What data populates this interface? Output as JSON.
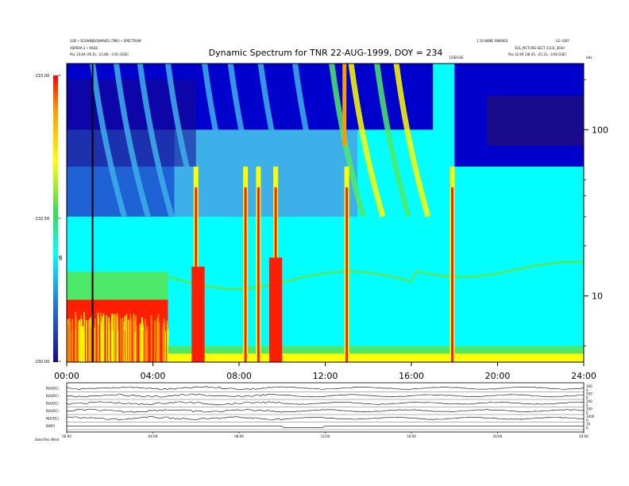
{
  "header": {
    "top_left_1": "GSE  •  SCI/WIND/SWAVES (TNR)  •  SPECTRUM",
    "top_left_2": "ASPERA-3  •  RAD2",
    "top_left_3": "Pos   33.84 (45.0), -23.86, -3.91 (GSE)",
    "top_right_1": "1.10  WIND  SWAVES",
    "top_right_2": "LS: IGRF",
    "top_right_3": "SOL_PICTURE  SECT 2(13)_3030",
    "top_right_4": "Pos   32.94 (38.45, -25.31, -3.60 GSE)",
    "marker_label": "GSE/GSE",
    "corner_label": "kHz"
  },
  "colorbar": {
    "ticks": [
      "-115.00",
      "-132.50",
      "-150.00"
    ],
    "unit_label": "dB"
  },
  "footer": {
    "label": "Solar/Sec Wind"
  },
  "colors": {
    "colormap": [
      "#1a0a8c",
      "#0000cc",
      "#1e62d6",
      "#3db0ea",
      "#00ffff",
      "#4dea6a",
      "#ffff00",
      "#ff9900",
      "#ff1e00",
      "#cc0000"
    ]
  },
  "chart_data": [
    {
      "type": "heatmap",
      "title": "Dynamic Spectrum for TNR 22-AUG-1999, DOY = 234",
      "xlabel": "",
      "ylabel": "",
      "x_ticks": [
        "00:00",
        "04:00",
        "08:00",
        "12:00",
        "16:00",
        "20:00",
        "24:00"
      ],
      "xlim_hours": [
        0,
        24
      ],
      "y_ticks": [
        "10",
        "100"
      ],
      "y_scale": "log",
      "ylim_khz": [
        4,
        250
      ],
      "colorbar_range_db": [
        -150,
        -115
      ],
      "colorbar_ticks": [
        -115,
        -132.5,
        -150
      ],
      "features": {
        "low_band_level": "red until ~04:40, then cyan/green",
        "intense_bursts_hours": [
          6.0,
          8.3,
          8.9,
          9.7,
          13.0,
          17.9
        ],
        "band_edge_khz": 14,
        "dark_vertical_line_hour": 1.2
      }
    },
    {
      "type": "line",
      "title": "",
      "panels": [
        {
          "label": "B(A/DC)",
          "right_values": [
            "100",
            "0"
          ]
        },
        {
          "label": "B(A/DC)",
          "right_values": [
            "200",
            "0"
          ]
        },
        {
          "label": "B(A/DC)",
          "right_values": [
            "200",
            "0"
          ]
        },
        {
          "label": "B(A/DC)",
          "right_values": [
            "200",
            "0"
          ]
        },
        {
          "label": "N(A/DC)",
          "right_values": [
            "1000",
            "0"
          ]
        },
        {
          "label": "B(NT)",
          "right_values": [
            "10",
            "0"
          ]
        }
      ],
      "x_ticks": [
        "00:00",
        "04:00",
        "08:00",
        "12:00",
        "16:00",
        "20:00",
        "24:00"
      ]
    }
  ]
}
